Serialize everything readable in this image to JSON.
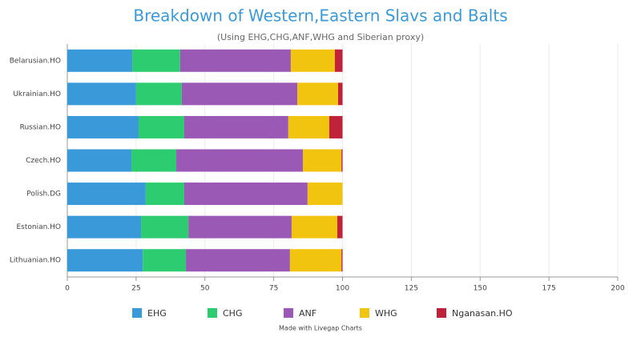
{
  "chart_data": {
    "type": "bar",
    "orientation": "horizontal",
    "stacked": true,
    "title": "Breakdown of Western,Eastern Slavs and Balts",
    "subtitle": "(Using EHG,CHG,ANF,WHG and Siberian proxy)",
    "footer": "Made with Livegap Charts",
    "categories": [
      "Belarusian.HO",
      "Ukrainian.HO",
      "Russian.HO",
      "Czech.HO",
      "Polish.DG",
      "Estonian.HO",
      "Lithuanian.HO"
    ],
    "series": [
      {
        "name": "EHG",
        "color": "#3a9ad9",
        "values": [
          23.6,
          25.0,
          25.9,
          23.3,
          28.5,
          26.8,
          27.4
        ]
      },
      {
        "name": "CHG",
        "color": "#2ecc71",
        "values": [
          17.4,
          16.6,
          16.6,
          16.3,
          14.0,
          17.2,
          15.7
        ]
      },
      {
        "name": "ANF",
        "color": "#9b59b6",
        "values": [
          40.2,
          42.0,
          37.8,
          46.0,
          44.8,
          37.5,
          37.8
        ]
      },
      {
        "name": "WHG",
        "color": "#f1c40f",
        "values": [
          16.0,
          14.8,
          14.9,
          14.0,
          12.7,
          16.6,
          18.7
        ]
      },
      {
        "name": "Nganasan.HO",
        "color": "#c0223b",
        "values": [
          2.8,
          1.6,
          4.8,
          0.4,
          0,
          1.9,
          0.4
        ]
      }
    ],
    "xlim": [
      0,
      200
    ],
    "xticks": [
      0,
      25,
      50,
      75,
      100,
      125,
      150,
      175,
      200
    ],
    "grid": true
  }
}
